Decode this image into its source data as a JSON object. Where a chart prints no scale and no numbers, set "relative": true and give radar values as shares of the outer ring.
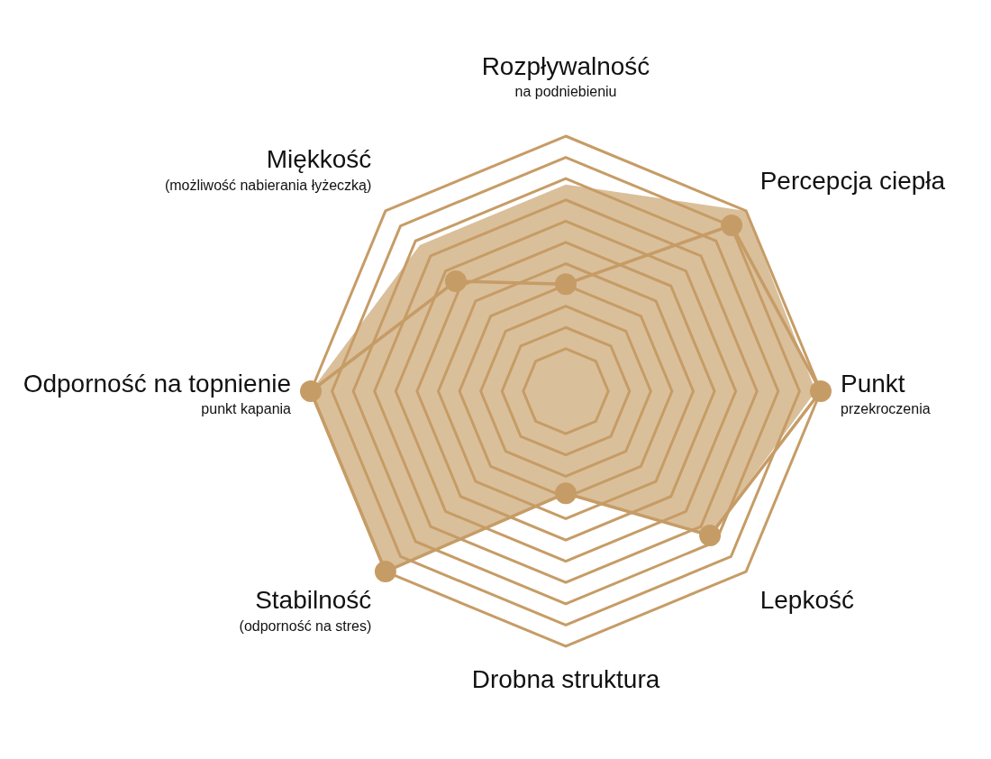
{
  "chart_data": {
    "type": "radar",
    "relative": true,
    "grid": true,
    "categories": [
      "Rozpływalność\nna podniebieniu",
      "Percepcja ciepła",
      "Punkt\nprzekroczenia",
      "Lepkość",
      "Drobna struktura",
      "Stabilność\n(odporność na stres)",
      "Odporność na topnienie\npunkt kapania",
      "Miękkość\n(możliwość nabierania łyżeczką)"
    ],
    "series": [
      {
        "type": "area",
        "color": "#c69c66",
        "marker": "none",
        "values": [
          0.81,
          1.0,
          0.98,
          0.8,
          0.4,
          1.0,
          1.0,
          0.81
        ]
      },
      {
        "color": "#c69c66",
        "marker": "circle",
        "values": [
          0.42,
          0.92,
          1.0,
          0.8,
          0.4,
          1.0,
          1.0,
          0.61
        ]
      }
    ]
  }
}
